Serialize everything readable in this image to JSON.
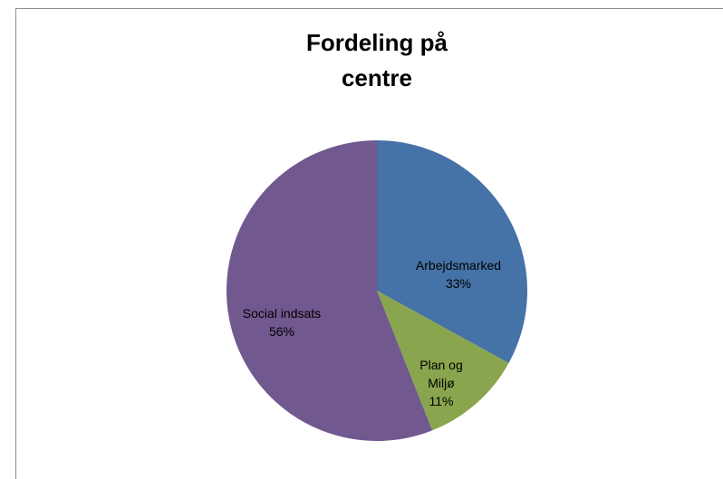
{
  "chart_data": {
    "type": "pie",
    "title": "Fordeling på centre",
    "categories": [
      "Arbejdsmarked",
      "Plan og Miljø",
      "Social indsats"
    ],
    "values": [
      33,
      11,
      56
    ],
    "value_labels": [
      "33%",
      "11%",
      "56%"
    ],
    "colors": [
      "#4572a7",
      "#89a54e",
      "#71588f"
    ]
  }
}
